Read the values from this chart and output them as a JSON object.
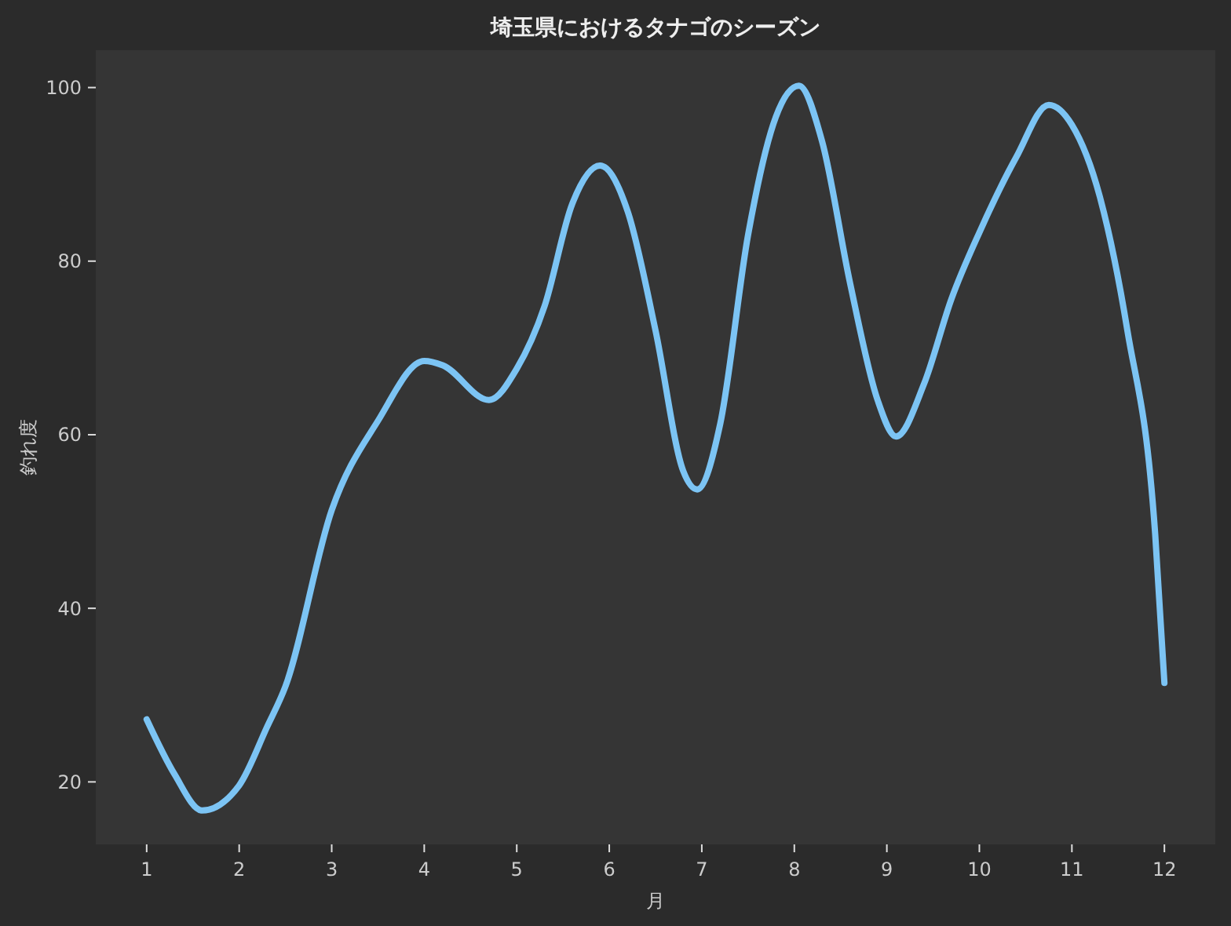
{
  "chart_data": {
    "type": "line",
    "title": "埼玉県におけるタナゴのシーズン",
    "xlabel": "月",
    "ylabel": "釣れ度",
    "xlim": [
      0.45,
      12.55
    ],
    "xticks": [
      1,
      2,
      3,
      4,
      5,
      6,
      7,
      8,
      9,
      10,
      11,
      12
    ],
    "ylim": [
      12.8,
      104.3
    ],
    "yticks": [
      20,
      40,
      60,
      80,
      100
    ],
    "grid": false,
    "marker": "none",
    "line_style": "solid",
    "series": [
      {
        "color": "#7cc4f4",
        "x": [
          1,
          1.3,
          1.6,
          2,
          2.3,
          2.5,
          3,
          3.5,
          4,
          4.2,
          4.7,
          5,
          5.3,
          5.6,
          5.9,
          6.2,
          6.5,
          6.8,
          6.95,
          7.2,
          7.5,
          7.8,
          8.05,
          8.3,
          8.6,
          8.9,
          9.1,
          9.4,
          9.7,
          10,
          10.4,
          10.75,
          11,
          11.3,
          11.6,
          11.9,
          12
        ],
        "values": [
          27.2,
          20.9,
          16.7,
          19.6,
          26.3,
          31,
          51.3,
          61.6,
          68.5,
          68,
          64,
          67.6,
          74.8,
          86.6,
          91,
          85.7,
          72,
          55.8,
          53.7,
          61.3,
          83,
          96.6,
          100.2,
          93.8,
          77.6,
          64,
          59.8,
          65.8,
          75.7,
          83.3,
          92,
          98,
          95.7,
          87.5,
          72,
          48.6,
          31.4
        ]
      }
    ]
  }
}
